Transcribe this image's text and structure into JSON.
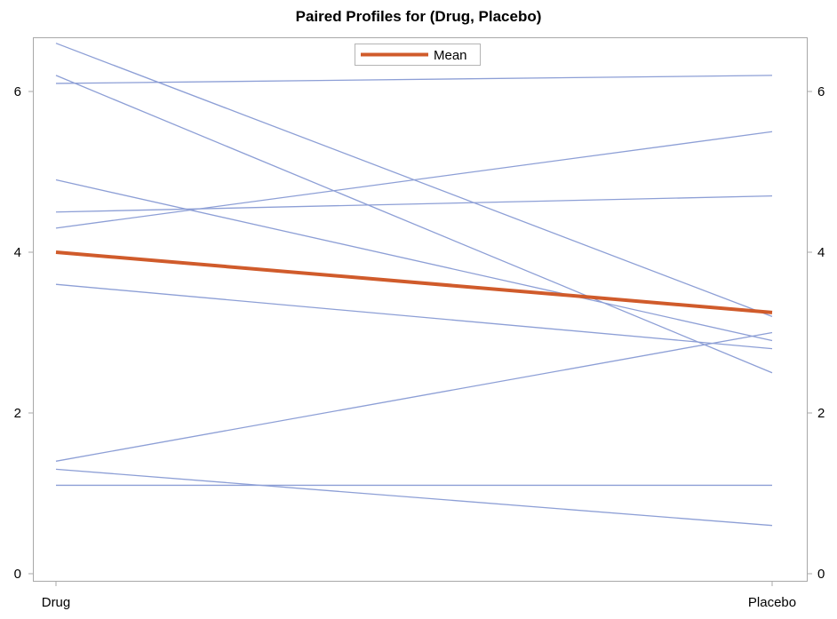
{
  "chart_data": {
    "type": "line",
    "title": "Paired Profiles for (Drug, Placebo)",
    "categories": [
      "Drug",
      "Placebo"
    ],
    "ylim": [
      0,
      6.6
    ],
    "yticks": [
      0,
      2,
      4,
      6
    ],
    "grid": false,
    "legend": {
      "position": "top-center",
      "entries": [
        "Mean"
      ]
    },
    "profile_color": "#8d9fd6",
    "mean_color": "#d05b2b",
    "profiles": [
      [
        6.6,
        3.2
      ],
      [
        6.2,
        2.5
      ],
      [
        6.1,
        6.2
      ],
      [
        4.9,
        2.9
      ],
      [
        4.5,
        4.7
      ],
      [
        4.3,
        5.5
      ],
      [
        3.6,
        2.8
      ],
      [
        1.4,
        3.0
      ],
      [
        1.3,
        0.6
      ],
      [
        1.1,
        1.1
      ]
    ],
    "mean": {
      "name": "Mean",
      "values": [
        4.0,
        3.25
      ]
    }
  }
}
